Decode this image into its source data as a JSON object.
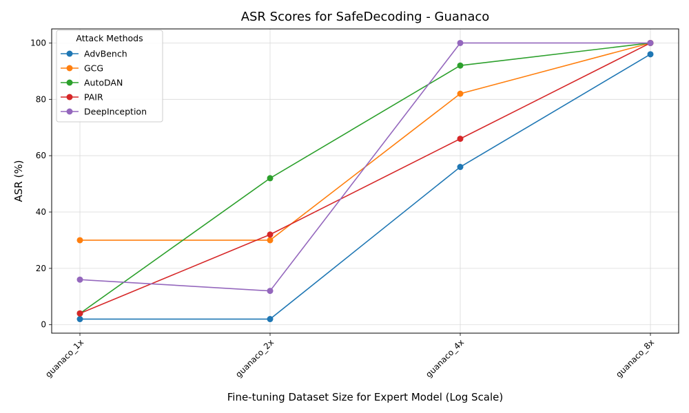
{
  "chart_data": {
    "type": "line",
    "title": "ASR Scores for SafeDecoding - Guanaco",
    "xlabel": "Fine-tuning Dataset Size for Expert Model (Log Scale)",
    "ylabel": "ASR (%)",
    "categories": [
      "guanaco_1x",
      "guanaco_2x",
      "guanaco_4x",
      "guanaco_8x"
    ],
    "ylim": [
      -3,
      105
    ],
    "yticks": [
      0,
      20,
      40,
      60,
      80,
      100
    ],
    "grid": true,
    "legend": {
      "title": "Attack Methods",
      "placement": "top-left"
    },
    "series": [
      {
        "name": "AdvBench",
        "color": "#1f77b4",
        "values": [
          2,
          2,
          56,
          96
        ]
      },
      {
        "name": "GCG",
        "color": "#ff7f0e",
        "values": [
          30,
          30,
          82,
          100
        ]
      },
      {
        "name": "AutoDAN",
        "color": "#2ca02c",
        "values": [
          4,
          52,
          92,
          100
        ]
      },
      {
        "name": "PAIR",
        "color": "#d62728",
        "values": [
          4,
          32,
          66,
          100
        ]
      },
      {
        "name": "DeepInception",
        "color": "#9467bd",
        "values": [
          16,
          12,
          100,
          100
        ]
      }
    ]
  }
}
